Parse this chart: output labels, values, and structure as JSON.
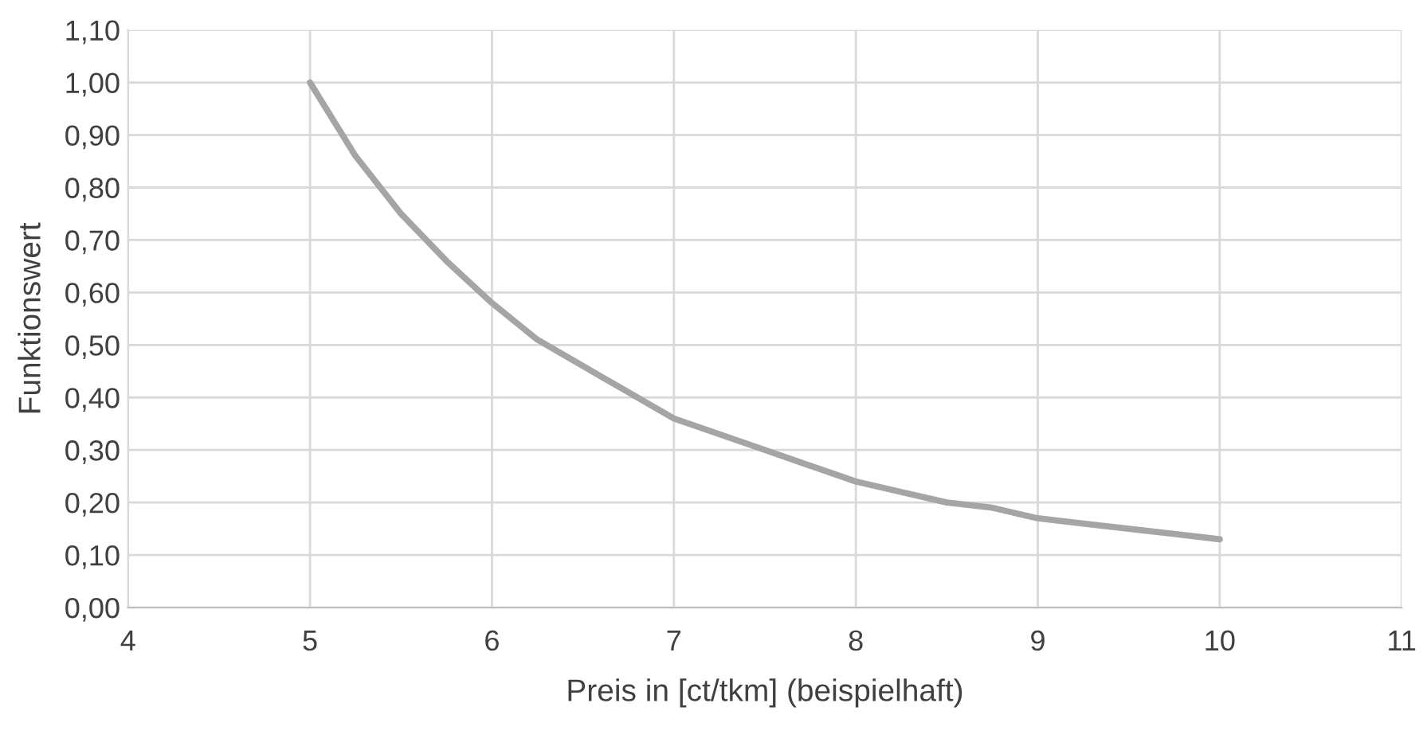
{
  "chart_data": {
    "type": "line",
    "xlabel": "Preis in [ct/tkm] (beispielhaft)",
    "ylabel": "Funktionswert",
    "x": [
      5,
      5.25,
      5.5,
      5.75,
      6,
      6.25,
      6.5,
      6.75,
      7,
      7.25,
      7.5,
      7.75,
      8,
      8.25,
      8.5,
      8.75,
      9,
      9.25,
      9.5,
      9.75,
      10
    ],
    "series": [
      {
        "color": "#a5a5a5",
        "values": [
          1.0,
          0.86,
          0.75,
          0.66,
          0.58,
          0.51,
          0.46,
          0.41,
          0.36,
          0.33,
          0.3,
          0.27,
          0.24,
          0.22,
          0.2,
          0.19,
          0.17,
          0.16,
          0.15,
          0.14,
          0.13
        ]
      }
    ],
    "xlim": [
      4,
      11
    ],
    "xticks": [
      4,
      5,
      6,
      7,
      8,
      9,
      10,
      11
    ],
    "ylim": [
      0,
      1.1
    ],
    "yticks": [
      {
        "value": 0,
        "label": "0,00"
      },
      {
        "value": 0.1,
        "label": "0,10"
      },
      {
        "value": 0.2,
        "label": "0,20"
      },
      {
        "value": 0.3,
        "label": "0,30"
      },
      {
        "value": 0.4,
        "label": "0,40"
      },
      {
        "value": 0.5,
        "label": "0,50"
      },
      {
        "value": 0.6,
        "label": "0,60"
      },
      {
        "value": 0.7,
        "label": "0,70"
      },
      {
        "value": 0.8,
        "label": "0,80"
      },
      {
        "value": 0.9,
        "label": "0,90"
      },
      {
        "value": 1.0,
        "label": "1,00"
      },
      {
        "value": 1.1,
        "label": "1,10"
      }
    ],
    "grid": true,
    "marker": "none",
    "line_style": "solid"
  }
}
